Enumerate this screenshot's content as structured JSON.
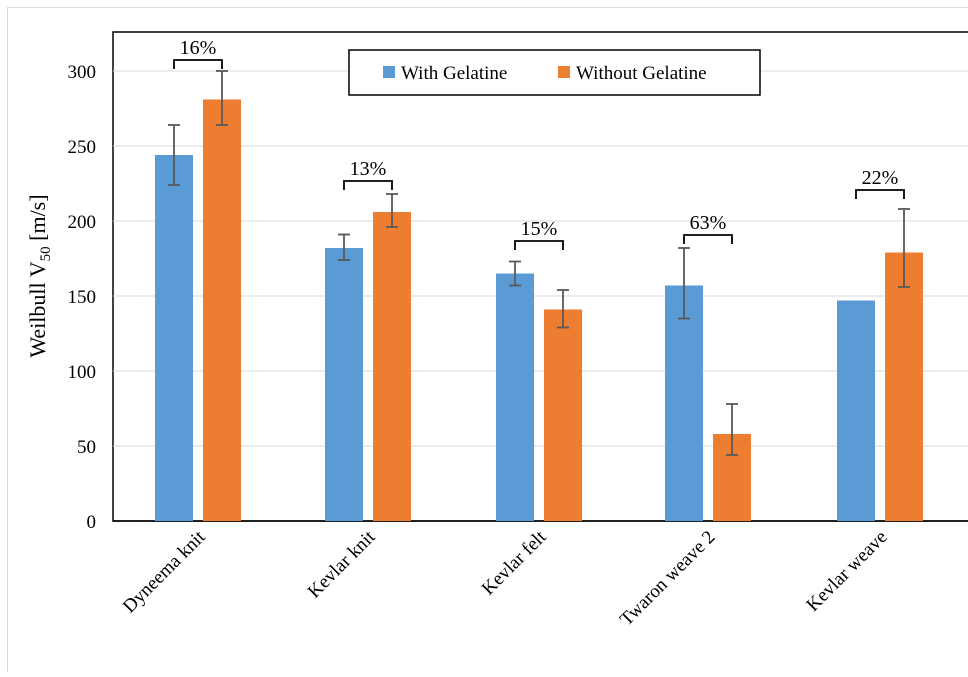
{
  "chart_data": {
    "type": "bar",
    "categories": [
      "Dyneema knit",
      "Kevlar knit",
      "Kevlar felt",
      "Twaron weave 2",
      "Kevlar weave"
    ],
    "series": [
      {
        "name": "With Gelatine",
        "color": "#5B9BD5",
        "values": [
          244,
          182,
          165,
          157,
          147
        ],
        "error_low": [
          224,
          174,
          157,
          135,
          null
        ],
        "error_high": [
          264,
          191,
          173,
          182,
          null
        ]
      },
      {
        "name": "Without Gelatine",
        "color": "#ED7D31",
        "values": [
          281,
          206,
          141,
          58,
          179
        ],
        "error_low": [
          264,
          196,
          129,
          44,
          156
        ],
        "error_high": [
          300,
          218,
          154,
          78,
          208
        ]
      }
    ],
    "annotations": [
      "16%",
      "13%",
      "15%",
      "63%",
      "22%"
    ],
    "ylabel": "Weilbull V",
    "ylabel_subscript": "50",
    "ylabel_unit": "[m/s]",
    "ylim": [
      0,
      325
    ],
    "yticks": [
      0,
      50,
      100,
      150,
      200,
      250,
      300
    ],
    "grid": true,
    "legend_position": "top-center"
  }
}
